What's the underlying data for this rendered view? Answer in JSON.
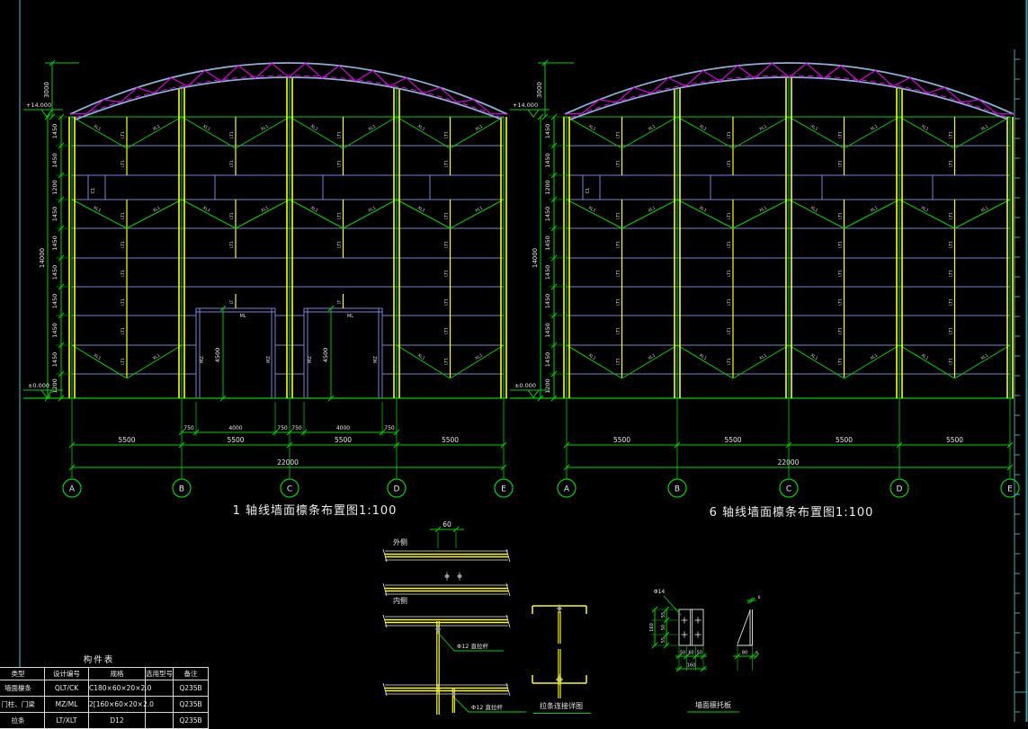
{
  "app": {
    "background": "#000000"
  },
  "colors": {
    "green": "#00d400",
    "blue": "#7585d8",
    "yellow": "#ffff00",
    "magenta": "#e800e8",
    "chord": "#8ab0d8",
    "white": "#e8e8e8",
    "gray": "#9a9a9a",
    "frame": "#3fa8a8"
  },
  "drawings": [
    {
      "id": "axis1",
      "title": "1 轴线墙面檩条布置图1:100",
      "grid_labels": [
        "A",
        "B",
        "C",
        "D",
        "E"
      ],
      "bay_dims": [
        "5500",
        "5500",
        "5500",
        "5500"
      ],
      "total_dim": "22000",
      "door_dims": [
        "750",
        "4000",
        "750",
        "750",
        "4000",
        "750"
      ],
      "left_dims": [
        "1450",
        "1450",
        "1200",
        "1450",
        "1450",
        "1450",
        "1450",
        "1450",
        "1450",
        "1200"
      ],
      "total_height_dim": "14000",
      "ridge_dim": "3000",
      "elev_top": "+14.000",
      "elev_bottom": "±0.000",
      "door_height_dim": "4500",
      "labels": {
        "diagonal": "XL1",
        "tie": "LT1",
        "window": "C1",
        "door_beam": "ML",
        "door_post": "MZ",
        "door_tie": "LT"
      },
      "has_doors": true
    },
    {
      "id": "axis6",
      "title": "6 轴线墙面檩条布置图1:100",
      "grid_labels": [
        "A",
        "B",
        "C",
        "D",
        "E"
      ],
      "bay_dims": [
        "5500",
        "5500",
        "5500",
        "5500"
      ],
      "total_dim": "22000",
      "left_dims": [
        "1450",
        "1450",
        "1200",
        "1450",
        "1450",
        "1450",
        "1450",
        "1450",
        "1450",
        "1200"
      ],
      "total_height_dim": "14000",
      "ridge_dim": "3000",
      "elev_top": "+14.000",
      "elev_bottom": "±0.000",
      "labels": {
        "diagonal": "XL1",
        "tie": "LT1",
        "window": "C1"
      },
      "has_doors": false
    }
  ],
  "details": {
    "purlin_lap": {
      "gap_dim": "60",
      "outer_label": "外侧",
      "inner_label": "内侧",
      "tie_callout": "Φ12 直拉杆"
    },
    "tie_link": {
      "title": "拉条连接详图"
    },
    "cleat": {
      "title": "墙面檩托板",
      "hole_callout": "Φ14",
      "width_dims": [
        "50",
        "60",
        "50"
      ],
      "width_total": "160",
      "height_dims": [
        "55",
        "50",
        "55"
      ],
      "height_total": "160",
      "gusset_width_dim": "80",
      "gusset_thickness_dim": "6"
    }
  },
  "component_table": {
    "title": "构件表",
    "headers": [
      "类型",
      "设计编号",
      "规格",
      "选用型号",
      "备注"
    ],
    "rows": [
      [
        "墙面檩条",
        "QLT/CK",
        "C180×60×20×2.0",
        "",
        "Q235B"
      ],
      [
        "门柱、门梁",
        "MZ/ML",
        "2[160×60×20×2.0",
        "",
        "Q235B"
      ],
      [
        "拉条",
        "LT/XLT",
        "D12",
        "",
        "Q235B"
      ]
    ]
  }
}
